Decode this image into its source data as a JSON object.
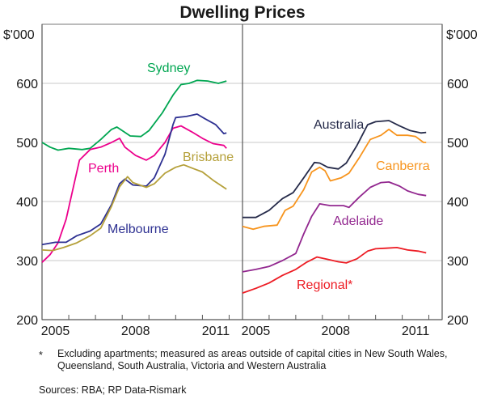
{
  "chart_data": [
    {
      "type": "line",
      "panel": "left",
      "title": "Dwelling Prices",
      "ylabel": "$'000",
      "ylim": [
        200,
        700
      ],
      "yticks": [
        200,
        300,
        400,
        500,
        600
      ],
      "xlim": [
        2005,
        2012.5
      ],
      "xtick_labels": [
        "2005",
        "2008",
        "2011"
      ],
      "xtick_label_positions": [
        2005.5,
        2008.5,
        2011.5
      ],
      "minor_ticks": [
        2006,
        2007,
        2008,
        2009,
        2010,
        2011,
        2012
      ],
      "grid": true,
      "series": [
        {
          "name": "Sydney",
          "color": "#00a651",
          "x": [
            2005.0,
            2005.3,
            2005.6,
            2006.0,
            2006.5,
            2006.8,
            2007.2,
            2007.6,
            2007.8,
            2008.0,
            2008.3,
            2008.7,
            2009.0,
            2009.5,
            2009.9,
            2010.2,
            2010.5,
            2010.8,
            2011.2,
            2011.6,
            2011.9
          ],
          "values": [
            500,
            492,
            487,
            490,
            488,
            490,
            505,
            522,
            526,
            520,
            511,
            510,
            520,
            550,
            580,
            598,
            600,
            605,
            604,
            600,
            604
          ]
        },
        {
          "name": "Perth",
          "color": "#ec008c",
          "x": [
            2005.0,
            2005.3,
            2005.6,
            2005.9,
            2006.2,
            2006.4,
            2006.8,
            2007.2,
            2007.6,
            2007.9,
            2008.1,
            2008.5,
            2008.9,
            2009.2,
            2009.6,
            2009.9,
            2010.2,
            2010.6,
            2011.0,
            2011.4,
            2011.8,
            2011.9
          ],
          "values": [
            297,
            310,
            330,
            370,
            430,
            470,
            488,
            492,
            500,
            507,
            492,
            478,
            470,
            478,
            500,
            524,
            528,
            518,
            507,
            498,
            495,
            490
          ]
        },
        {
          "name": "Melbourne",
          "color": "#2e3192",
          "x": [
            2005.0,
            2005.5,
            2005.9,
            2006.3,
            2006.8,
            2007.2,
            2007.6,
            2007.9,
            2008.1,
            2008.4,
            2008.9,
            2009.2,
            2009.6,
            2009.9,
            2010.0,
            2010.4,
            2010.8,
            2011.1,
            2011.5,
            2011.8,
            2011.9
          ],
          "values": [
            327,
            331,
            331,
            342,
            350,
            362,
            395,
            430,
            438,
            428,
            426,
            440,
            480,
            530,
            542,
            544,
            548,
            540,
            530,
            515,
            516
          ]
        },
        {
          "name": "Brisbane",
          "color": "#b5a03a",
          "x": [
            2005.0,
            2005.4,
            2005.8,
            2006.3,
            2006.8,
            2007.2,
            2007.6,
            2007.9,
            2008.2,
            2008.4,
            2008.9,
            2009.2,
            2009.6,
            2010.0,
            2010.3,
            2010.7,
            2011.0,
            2011.4,
            2011.9
          ],
          "values": [
            318,
            317,
            322,
            330,
            342,
            355,
            392,
            425,
            442,
            432,
            424,
            430,
            448,
            458,
            462,
            455,
            450,
            436,
            421
          ]
        }
      ],
      "annotations": [
        {
          "text": "Sydney",
          "series": "Sydney"
        },
        {
          "text": "Perth",
          "series": "Perth"
        },
        {
          "text": "Melbourne",
          "series": "Melbourne"
        },
        {
          "text": "Brisbane",
          "series": "Brisbane"
        }
      ]
    },
    {
      "type": "line",
      "panel": "right",
      "ylabel": "$'000",
      "ylim": [
        200,
        700
      ],
      "yticks": [
        200,
        300,
        400,
        500,
        600
      ],
      "xlim": [
        2005,
        2012.5
      ],
      "xtick_labels": [
        "2005",
        "2008",
        "2011"
      ],
      "xtick_label_positions": [
        2005.5,
        2008.5,
        2011.5
      ],
      "minor_ticks": [
        2006,
        2007,
        2008,
        2009,
        2010,
        2011,
        2012
      ],
      "grid": true,
      "series": [
        {
          "name": "Australia",
          "color": "#262b4a",
          "x": [
            2005.0,
            2005.5,
            2006.0,
            2006.5,
            2006.9,
            2007.3,
            2007.7,
            2007.9,
            2008.2,
            2008.6,
            2008.9,
            2009.3,
            2009.7,
            2010.0,
            2010.5,
            2010.9,
            2011.3,
            2011.7,
            2011.9
          ],
          "values": [
            373,
            373,
            385,
            405,
            415,
            440,
            466,
            465,
            458,
            455,
            465,
            495,
            530,
            535,
            537,
            528,
            520,
            516,
            517
          ]
        },
        {
          "name": "Canberra",
          "color": "#f7941d",
          "x": [
            2005.0,
            2005.4,
            2005.8,
            2006.3,
            2006.6,
            2006.9,
            2007.3,
            2007.6,
            2007.9,
            2008.1,
            2008.3,
            2008.7,
            2009.0,
            2009.4,
            2009.8,
            2010.2,
            2010.5,
            2010.8,
            2011.2,
            2011.5,
            2011.8,
            2011.9
          ],
          "values": [
            358,
            353,
            358,
            360,
            385,
            392,
            420,
            450,
            458,
            452,
            435,
            440,
            448,
            475,
            505,
            512,
            522,
            512,
            512,
            510,
            500,
            500
          ]
        },
        {
          "name": "Adelaide",
          "color": "#92278f",
          "x": [
            2005.0,
            2005.5,
            2006.0,
            2006.5,
            2007.0,
            2007.3,
            2007.6,
            2007.9,
            2008.3,
            2008.8,
            2009.0,
            2009.4,
            2009.8,
            2010.2,
            2010.5,
            2010.9,
            2011.2,
            2011.6,
            2011.9
          ],
          "values": [
            281,
            285,
            290,
            300,
            312,
            345,
            375,
            396,
            393,
            393,
            390,
            408,
            424,
            432,
            433,
            426,
            418,
            412,
            410
          ]
        },
        {
          "name": "Regional*",
          "color": "#ed1c24",
          "x": [
            2005.0,
            2005.5,
            2006.0,
            2006.5,
            2007.0,
            2007.4,
            2007.8,
            2008.2,
            2008.6,
            2008.9,
            2009.3,
            2009.7,
            2010.0,
            2010.4,
            2010.8,
            2011.2,
            2011.6,
            2011.9
          ],
          "values": [
            245,
            253,
            262,
            275,
            285,
            297,
            306,
            302,
            298,
            296,
            303,
            316,
            320,
            321,
            322,
            318,
            316,
            313
          ]
        }
      ],
      "annotations": [
        {
          "text": "Australia",
          "series": "Australia"
        },
        {
          "text": "Canberra",
          "series": "Canberra"
        },
        {
          "text": "Adelaide",
          "series": "Adelaide"
        },
        {
          "text": "Regional*",
          "series": "Regional*"
        }
      ]
    }
  ],
  "title": "Dwelling Prices",
  "left_axis_unit": "$'000",
  "right_axis_unit": "$'000",
  "ytick_labels": [
    "200",
    "300",
    "400",
    "500",
    "600"
  ],
  "footnote_marker": "*",
  "footnote_text": "Excluding apartments; measured as areas outside of capital cities in New South Wales, Queensland, South Australia, Victoria and Western Australia",
  "sources": "Sources: RBA; RP Data-Rismark"
}
